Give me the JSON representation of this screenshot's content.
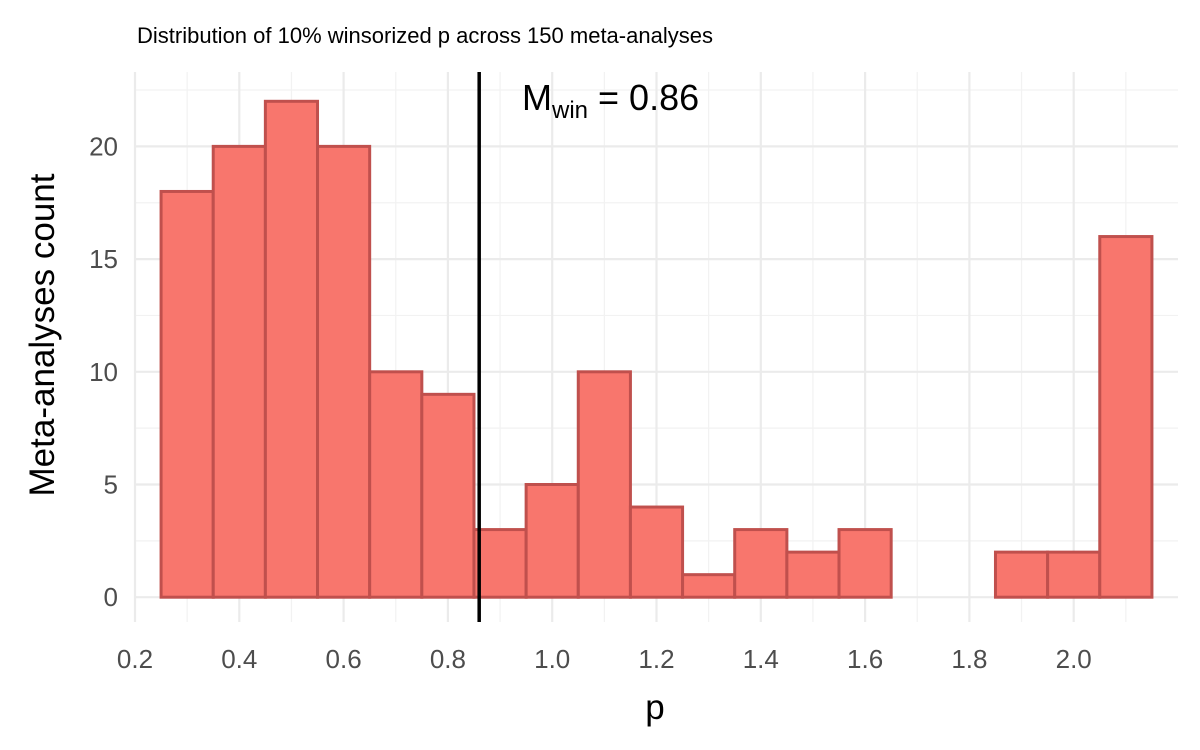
{
  "chart_data": {
    "type": "bar",
    "subtype": "histogram",
    "title": "Distribution of 10% winsorized p across 150 meta-analyses",
    "xlabel": "p",
    "ylabel": "Meta-analyses count",
    "bin_width": 0.1,
    "bins": [
      {
        "start": 0.25,
        "end": 0.35,
        "count": 18
      },
      {
        "start": 0.35,
        "end": 0.45,
        "count": 20
      },
      {
        "start": 0.45,
        "end": 0.55,
        "count": 22
      },
      {
        "start": 0.55,
        "end": 0.65,
        "count": 20
      },
      {
        "start": 0.65,
        "end": 0.75,
        "count": 10
      },
      {
        "start": 0.75,
        "end": 0.85,
        "count": 9
      },
      {
        "start": 0.85,
        "end": 0.95,
        "count": 3
      },
      {
        "start": 0.95,
        "end": 1.05,
        "count": 5
      },
      {
        "start": 1.05,
        "end": 1.15,
        "count": 10
      },
      {
        "start": 1.15,
        "end": 1.25,
        "count": 4
      },
      {
        "start": 1.25,
        "end": 1.35,
        "count": 1
      },
      {
        "start": 1.35,
        "end": 1.45,
        "count": 3
      },
      {
        "start": 1.45,
        "end": 1.55,
        "count": 2
      },
      {
        "start": 1.55,
        "end": 1.65,
        "count": 3
      },
      {
        "start": 1.65,
        "end": 1.75,
        "count": 0
      },
      {
        "start": 1.75,
        "end": 1.85,
        "count": 0
      },
      {
        "start": 1.85,
        "end": 1.95,
        "count": 2
      },
      {
        "start": 1.95,
        "end": 2.05,
        "count": 2
      },
      {
        "start": 2.05,
        "end": 2.15,
        "count": 16
      }
    ],
    "xlim": [
      0.2,
      2.2
    ],
    "ylim": [
      -1.1,
      23.3
    ],
    "x_ticks": [
      0.2,
      0.4,
      0.6,
      0.8,
      1.0,
      1.2,
      1.4,
      1.6,
      1.8,
      2.0
    ],
    "x_tick_labels": [
      "0.2",
      "0.4",
      "0.6",
      "0.8",
      "1.0",
      "1.2",
      "1.4",
      "1.6",
      "1.8",
      "2.0"
    ],
    "y_ticks": [
      0,
      5,
      10,
      15,
      20
    ],
    "y_tick_labels": [
      "0",
      "5",
      "10",
      "15",
      "20"
    ],
    "grid": true,
    "colors": {
      "bar_fill": "#F8766D",
      "bar_outline": "#C0504D",
      "reference_line": "#000000"
    },
    "reference_line": {
      "x": 0.86
    },
    "annotation": {
      "main": "M",
      "subscript": "win",
      "rest": " = 0.86"
    }
  }
}
